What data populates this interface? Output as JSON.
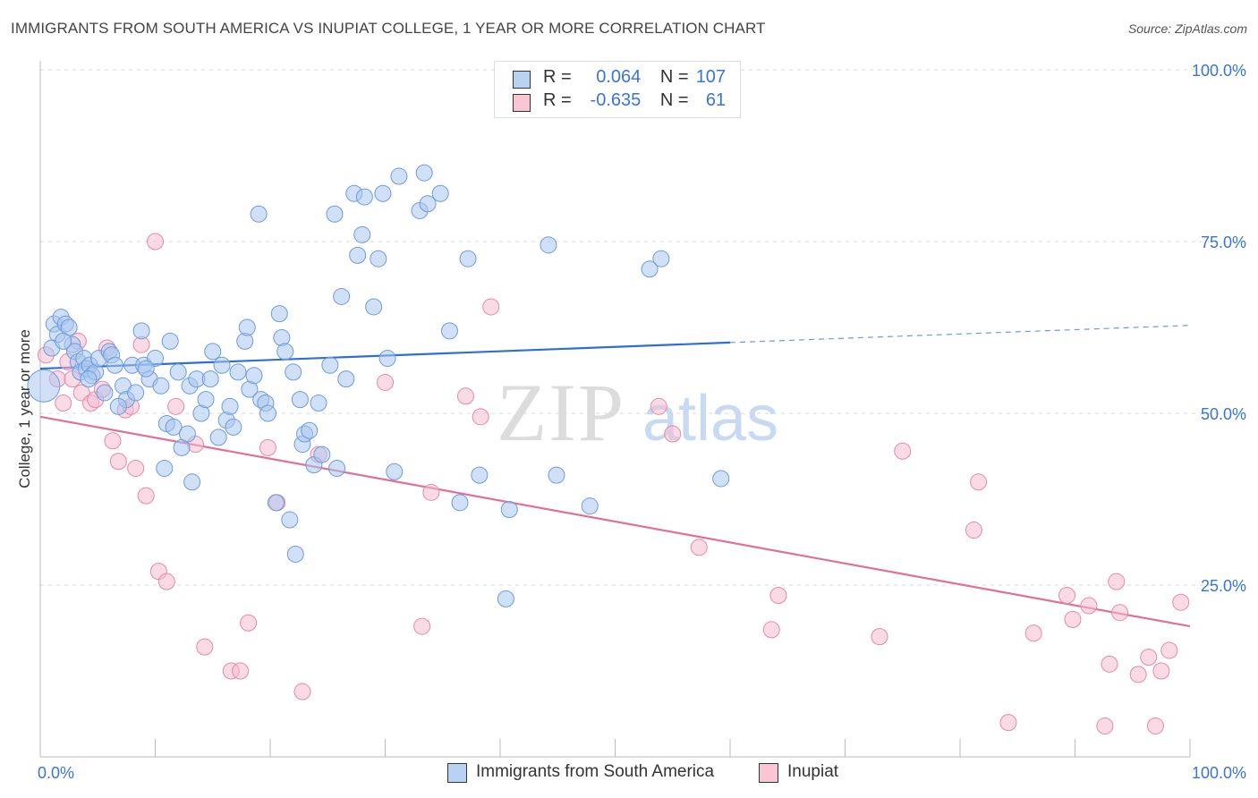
{
  "title": "IMMIGRANTS FROM SOUTH AMERICA VS INUPIAT COLLEGE, 1 YEAR OR MORE CORRELATION CHART",
  "source": "Source: ZipAtlas.com",
  "watermark": {
    "zip": "ZIP",
    "atlas": "atlas"
  },
  "legend": {
    "blue": {
      "r_label": "R =",
      "r_value": "0.064",
      "n_label": "N =",
      "n_value": "107"
    },
    "pink": {
      "r_label": "R =",
      "r_value": "-0.635",
      "n_label": "N =",
      "n_value": "61"
    }
  },
  "colors": {
    "blue_fill": "#a9c6f0",
    "blue_stroke": "#6f9bdc",
    "blue_line": "#2f6fd0",
    "pink_fill": "#f6bccd",
    "pink_stroke": "#e48aa8",
    "pink_line": "#e0709a",
    "axis_label": "#3a74d4"
  },
  "chart_data": {
    "type": "scatter",
    "xlabel": "",
    "ylabel": "College, 1 year or more",
    "xlim": [
      0,
      100
    ],
    "ylim": [
      0,
      100
    ],
    "x_tick_labels": [
      {
        "value": 0,
        "label": "0.0%"
      },
      {
        "value": 100,
        "label": "100.0%"
      }
    ],
    "y_tick_labels": [
      {
        "value": 100,
        "label": "100.0%"
      },
      {
        "value": 75,
        "label": "75.0%"
      },
      {
        "value": 50,
        "label": "50.0%"
      },
      {
        "value": 25,
        "label": "25.0%"
      }
    ],
    "grid": "horizontal dashed",
    "series": [
      {
        "name": "Immigrants from South America",
        "color": "#a9c6f0",
        "points": [
          [
            0.3,
            54
          ],
          [
            1.2,
            63
          ],
          [
            1.5,
            61.5
          ],
          [
            1.8,
            64
          ],
          [
            2.2,
            63
          ],
          [
            2.5,
            62.5
          ],
          [
            2.8,
            60
          ],
          [
            3.0,
            59
          ],
          [
            3.3,
            57.5
          ],
          [
            3.5,
            56
          ],
          [
            3.8,
            58
          ],
          [
            4.0,
            56.5
          ],
          [
            4.3,
            57
          ],
          [
            4.5,
            55.5
          ],
          [
            4.8,
            56
          ],
          [
            5.1,
            58
          ],
          [
            5.6,
            53
          ],
          [
            6.0,
            59
          ],
          [
            6.2,
            58.5
          ],
          [
            6.5,
            57
          ],
          [
            7.2,
            54
          ],
          [
            7.5,
            52
          ],
          [
            8.0,
            57
          ],
          [
            8.3,
            53
          ],
          [
            8.8,
            62
          ],
          [
            9.0,
            57
          ],
          [
            9.5,
            55
          ],
          [
            10.0,
            58
          ],
          [
            10.5,
            54
          ],
          [
            11.0,
            48.5
          ],
          [
            11.3,
            60.5
          ],
          [
            11.6,
            48
          ],
          [
            12.0,
            56
          ],
          [
            12.3,
            45
          ],
          [
            13.0,
            54
          ],
          [
            13.2,
            40
          ],
          [
            13.6,
            55
          ],
          [
            14.0,
            50
          ],
          [
            14.4,
            52
          ],
          [
            15.0,
            59
          ],
          [
            15.5,
            46.5
          ],
          [
            15.8,
            57
          ],
          [
            16.2,
            49
          ],
          [
            16.8,
            48
          ],
          [
            17.2,
            56
          ],
          [
            17.8,
            60.5
          ],
          [
            18.0,
            62.5
          ],
          [
            18.2,
            53.5
          ],
          [
            18.6,
            55.5
          ],
          [
            19.0,
            79
          ],
          [
            19.2,
            52
          ],
          [
            19.6,
            51.5
          ],
          [
            19.8,
            50
          ],
          [
            20.5,
            37
          ],
          [
            20.8,
            64.5
          ],
          [
            21.0,
            61
          ],
          [
            21.3,
            59
          ],
          [
            21.7,
            34.5
          ],
          [
            22.2,
            29.5
          ],
          [
            22.6,
            52
          ],
          [
            22.8,
            45.5
          ],
          [
            23.0,
            47
          ],
          [
            23.4,
            47.5
          ],
          [
            23.8,
            42.5
          ],
          [
            24.2,
            51.5
          ],
          [
            24.5,
            44
          ],
          [
            25.2,
            57
          ],
          [
            25.6,
            79
          ],
          [
            26.2,
            67
          ],
          [
            26.6,
            55
          ],
          [
            27.3,
            82
          ],
          [
            27.6,
            73
          ],
          [
            28.0,
            76
          ],
          [
            28.2,
            81.5
          ],
          [
            29.0,
            65.5
          ],
          [
            29.4,
            72.5
          ],
          [
            29.8,
            82
          ],
          [
            30.8,
            41.5
          ],
          [
            31.2,
            84.5
          ],
          [
            33.0,
            79.5
          ],
          [
            33.4,
            85
          ],
          [
            33.7,
            80.5
          ],
          [
            34.8,
            82
          ],
          [
            36.5,
            37
          ],
          [
            37.2,
            72.5
          ],
          [
            38.2,
            41
          ],
          [
            40.5,
            23
          ],
          [
            40.8,
            36
          ],
          [
            44.2,
            74.5
          ],
          [
            47.8,
            36.5
          ],
          [
            53.0,
            71
          ],
          [
            54.0,
            72.5
          ],
          [
            59.2,
            40.5
          ],
          [
            1.0,
            59.5
          ],
          [
            2.0,
            60.5
          ],
          [
            4.2,
            55
          ],
          [
            6.8,
            51
          ],
          [
            9.2,
            56.5
          ],
          [
            12.8,
            47
          ],
          [
            16.5,
            51
          ],
          [
            14.8,
            55
          ],
          [
            22.0,
            56
          ],
          [
            25.8,
            42
          ],
          [
            30.2,
            58
          ],
          [
            35.6,
            62
          ],
          [
            44.9,
            41
          ],
          [
            10.8,
            42
          ]
        ],
        "trend": {
          "x1": 0,
          "y1": 56.5,
          "x2": 60,
          "y2": 60.3,
          "dashed_to_x": 100,
          "dashed_to_y": 62.8
        }
      },
      {
        "name": "Inupiat",
        "color": "#f6bccd",
        "points": [
          [
            0.5,
            58.5
          ],
          [
            1.5,
            55
          ],
          [
            2.0,
            51.5
          ],
          [
            2.4,
            57.5
          ],
          [
            2.8,
            55
          ],
          [
            3.3,
            60.5
          ],
          [
            3.6,
            53
          ],
          [
            4.4,
            51.5
          ],
          [
            4.8,
            52
          ],
          [
            5.4,
            53.5
          ],
          [
            5.8,
            59.5
          ],
          [
            6.3,
            46
          ],
          [
            6.8,
            43
          ],
          [
            7.4,
            50.5
          ],
          [
            7.9,
            51
          ],
          [
            8.3,
            42
          ],
          [
            8.8,
            60
          ],
          [
            9.2,
            38
          ],
          [
            10.0,
            75
          ],
          [
            10.3,
            27
          ],
          [
            11.0,
            25.5
          ],
          [
            11.8,
            51
          ],
          [
            13.5,
            45.5
          ],
          [
            14.3,
            16
          ],
          [
            16.6,
            12.5
          ],
          [
            17.4,
            12.5
          ],
          [
            18.1,
            19.5
          ],
          [
            19.8,
            45
          ],
          [
            20.6,
            37
          ],
          [
            22.8,
            9.5
          ],
          [
            24.2,
            44
          ],
          [
            30.0,
            54.5
          ],
          [
            33.2,
            19
          ],
          [
            34.0,
            38.5
          ],
          [
            37.0,
            52.5
          ],
          [
            38.3,
            49.5
          ],
          [
            39.2,
            65.5
          ],
          [
            53.8,
            51
          ],
          [
            55.0,
            47
          ],
          [
            57.3,
            30.5
          ],
          [
            63.6,
            18.5
          ],
          [
            64.2,
            23.5
          ],
          [
            73.0,
            17.5
          ],
          [
            75.0,
            44.5
          ],
          [
            81.2,
            33
          ],
          [
            81.6,
            40
          ],
          [
            84.2,
            5
          ],
          [
            86.4,
            18
          ],
          [
            89.3,
            23.5
          ],
          [
            89.8,
            20
          ],
          [
            91.2,
            22
          ],
          [
            93.0,
            13.5
          ],
          [
            93.6,
            25.5
          ],
          [
            93.9,
            21
          ],
          [
            95.5,
            12
          ],
          [
            96.4,
            14.5
          ],
          [
            97.0,
            4.5
          ],
          [
            97.5,
            12.5
          ],
          [
            98.2,
            15.5
          ],
          [
            99.2,
            22.5
          ],
          [
            92.6,
            4.5
          ]
        ],
        "trend": {
          "x1": 0,
          "y1": 49.5,
          "x2": 100,
          "y2": 19
        }
      }
    ]
  }
}
